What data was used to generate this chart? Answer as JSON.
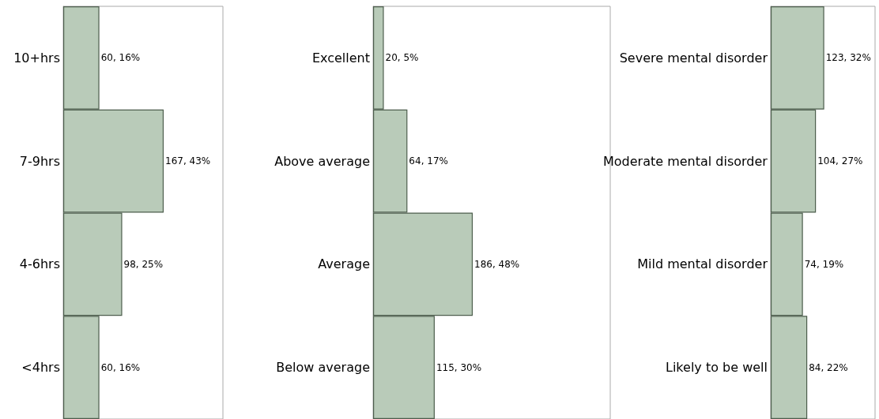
{
  "chart_data": [
    {
      "type": "bar",
      "orientation": "horizontal",
      "categories": [
        "10+hrs",
        "7-9hrs",
        "4-6hrs",
        "<4hrs"
      ],
      "values": [
        60,
        167,
        98,
        60
      ],
      "value_labels": [
        "60, 16%",
        "167, 43%",
        "98, 25%",
        "60, 16%"
      ],
      "color": "#b9cbb9"
    },
    {
      "type": "bar",
      "orientation": "horizontal",
      "categories": [
        "Excellent",
        "Above average",
        "Average",
        "Below average"
      ],
      "values": [
        20,
        64,
        186,
        115
      ],
      "value_labels": [
        "20, 5%",
        "64, 17%",
        "186, 48%",
        "115, 30%"
      ],
      "color": "#b9cbb9"
    },
    {
      "type": "bar",
      "orientation": "horizontal",
      "categories": [
        "Severe mental disorder",
        "Moderate mental disorder",
        "Mild mental disorder",
        "Likely to be well"
      ],
      "values": [
        123,
        104,
        74,
        84
      ],
      "value_labels": [
        "123, 32%",
        "104, 27%",
        "74, 19%",
        "84, 22%"
      ],
      "color": "#b9cbb9"
    }
  ]
}
